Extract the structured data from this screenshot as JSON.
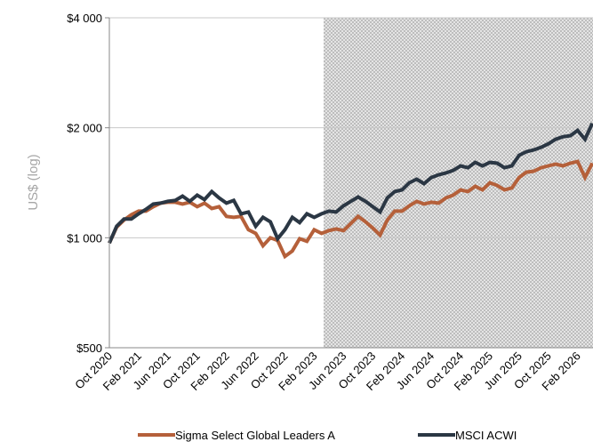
{
  "chart_data": {
    "type": "line",
    "y_label": "US$ (log)",
    "log_scale": true,
    "grid": true,
    "legend": "bottom",
    "ylim": [
      500,
      4000
    ],
    "yticks": [
      {
        "value": 500,
        "label": "$500"
      },
      {
        "value": 1000,
        "label": "$1 000"
      },
      {
        "value": 2000,
        "label": "$2 000"
      },
      {
        "value": 4000,
        "label": "$4 000"
      }
    ],
    "categories": [
      "Oct 2020",
      null,
      null,
      null,
      "Feb 2021",
      null,
      null,
      null,
      "Jun 2021",
      null,
      null,
      null,
      "Oct 2021",
      null,
      null,
      null,
      "Feb 2022",
      null,
      null,
      null,
      "Jun 2022",
      null,
      null,
      null,
      "Oct 2022",
      null,
      null,
      null,
      "Feb 2023",
      null,
      null,
      null,
      "Jun 2023",
      null,
      null,
      null,
      "Oct 2023",
      null,
      null,
      null,
      "Feb 2024",
      null,
      null,
      null,
      "Jun 2024",
      null,
      null,
      null,
      "Oct 2024",
      null,
      null,
      null,
      "Feb 2025",
      null,
      null,
      null,
      "Jun 2025",
      null,
      null,
      null,
      "Oct 2025",
      null,
      null,
      null,
      "Feb 2026",
      null,
      null
    ],
    "series": [
      {
        "name": "Sigma Select Global Leaders A",
        "color": "#b5603a",
        "values": [
          967,
          1069,
          1118,
          1156,
          1183,
          1183,
          1216,
          1244,
          1251,
          1251,
          1237,
          1251,
          1216,
          1244,
          1203,
          1216,
          1144,
          1137,
          1144,
          1052,
          1028,
          951,
          1000,
          983,
          889,
          920,
          994,
          978,
          1052,
          1028,
          1046,
          1057,
          1046,
          1094,
          1144,
          1106,
          1063,
          1017,
          1118,
          1183,
          1183,
          1223,
          1258,
          1237,
          1251,
          1244,
          1286,
          1308,
          1352,
          1338,
          1383,
          1352,
          1414,
          1391,
          1352,
          1368,
          1462,
          1512,
          1521,
          1555,
          1573,
          1591,
          1573,
          1600,
          1617,
          1462,
          1600
        ]
      },
      {
        "name": "MSCI ACWI",
        "color": "#2b3744",
        "values": [
          967,
          1075,
          1125,
          1125,
          1163,
          1196,
          1237,
          1244,
          1258,
          1265,
          1300,
          1258,
          1308,
          1272,
          1338,
          1286,
          1244,
          1265,
          1163,
          1176,
          1075,
          1137,
          1106,
          994,
          1052,
          1137,
          1100,
          1163,
          1137,
          1163,
          1183,
          1176,
          1223,
          1258,
          1293,
          1258,
          1216,
          1176,
          1286,
          1338,
          1352,
          1414,
          1446,
          1406,
          1462,
          1487,
          1504,
          1529,
          1573,
          1555,
          1608,
          1573,
          1608,
          1600,
          1555,
          1573,
          1682,
          1720,
          1739,
          1768,
          1808,
          1860,
          1891,
          1902,
          1967,
          1860,
          2057
        ]
      }
    ]
  }
}
